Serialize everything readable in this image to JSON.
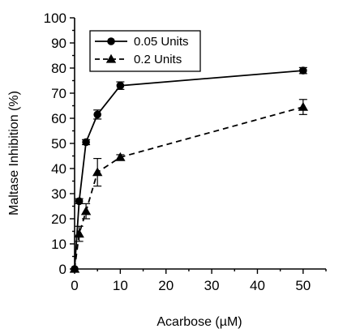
{
  "chart_data": {
    "type": "line",
    "xlabel": "Acarbose (µM)",
    "ylabel": "Maltase Inhibition (%)",
    "xlim": [
      0,
      55
    ],
    "ylim": [
      0,
      100
    ],
    "x_ticks": [
      0,
      10,
      20,
      30,
      40,
      50
    ],
    "y_ticks": [
      0,
      10,
      20,
      30,
      40,
      50,
      60,
      70,
      80,
      90,
      100
    ],
    "grid": false,
    "legend_position": "top-left",
    "series": [
      {
        "name": "0.05 Units",
        "marker": "circle",
        "line_style": "solid",
        "color": "#000000",
        "x": [
          0,
          1,
          2.5,
          5,
          10,
          50
        ],
        "y": [
          0,
          27,
          50.5,
          61.5,
          73,
          79
        ],
        "err": [
          0,
          1,
          1,
          1.8,
          1.5,
          1.2
        ]
      },
      {
        "name": "0.2 Units",
        "marker": "triangle",
        "line_style": "dashed",
        "color": "#000000",
        "x": [
          0,
          1,
          2.5,
          5,
          10,
          50
        ],
        "y": [
          0,
          14,
          23,
          38.5,
          44.5,
          64.5
        ],
        "err": [
          0,
          3,
          3,
          5.5,
          1,
          3
        ]
      }
    ]
  }
}
